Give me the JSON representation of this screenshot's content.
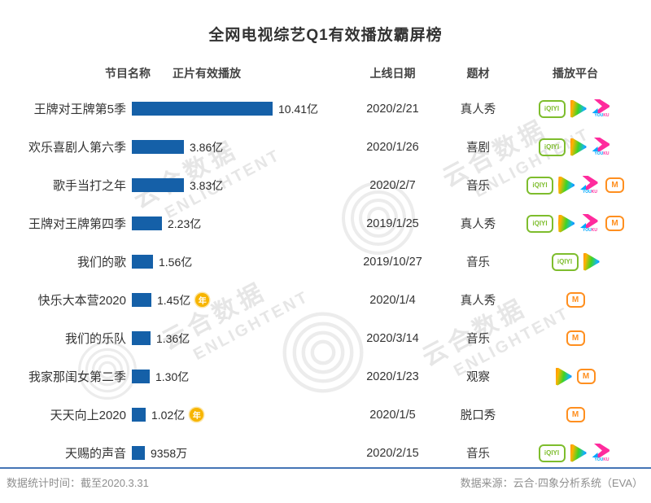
{
  "title": "全网电视综艺Q1有效播放霸屏榜",
  "columns": {
    "name": "节目名称",
    "playback": "正片有效播放",
    "date": "上线日期",
    "genre": "题材",
    "platform": "播放平台"
  },
  "chart_data": {
    "type": "bar",
    "orientation": "horizontal",
    "title": "全网电视综艺Q1有效播放霸屏榜",
    "unit": "亿",
    "max_value": 10.41,
    "xlim": [
      0,
      10.41
    ],
    "categories": [
      "王牌对王牌第5季",
      "欢乐喜剧人第六季",
      "歌手当打之年",
      "王牌对王牌第四季",
      "我们的歌",
      "快乐大本营2020",
      "我们的乐队",
      "我家那闺女第二季",
      "天天向上2020",
      "天赐的声音"
    ],
    "values": [
      10.41,
      3.86,
      3.83,
      2.23,
      1.56,
      1.45,
      1.36,
      1.3,
      1.02,
      0.9358
    ],
    "value_labels": [
      "10.41亿",
      "3.86亿",
      "3.83亿",
      "2.23亿",
      "1.56亿",
      "1.45亿",
      "1.36亿",
      "1.30亿",
      "1.02亿",
      "9358万"
    ]
  },
  "rows": [
    {
      "name": "王牌对王牌第5季",
      "value": 10.41,
      "value_label": "10.41亿",
      "badge": false,
      "date": "2020/2/21",
      "genre": "真人秀",
      "platforms": [
        "iqiyi",
        "tencent",
        "youku"
      ]
    },
    {
      "name": "欢乐喜剧人第六季",
      "value": 3.86,
      "value_label": "3.86亿",
      "badge": false,
      "date": "2020/1/26",
      "genre": "喜剧",
      "platforms": [
        "iqiyi",
        "tencent",
        "youku"
      ]
    },
    {
      "name": "歌手当打之年",
      "value": 3.83,
      "value_label": "3.83亿",
      "badge": false,
      "date": "2020/2/7",
      "genre": "音乐",
      "platforms": [
        "iqiyi",
        "tencent",
        "youku",
        "mgtv"
      ]
    },
    {
      "name": "王牌对王牌第四季",
      "value": 2.23,
      "value_label": "2.23亿",
      "badge": false,
      "date": "2019/1/25",
      "genre": "真人秀",
      "platforms": [
        "iqiyi",
        "tencent",
        "youku",
        "mgtv"
      ]
    },
    {
      "name": "我们的歌",
      "value": 1.56,
      "value_label": "1.56亿",
      "badge": false,
      "date": "2019/10/27",
      "genre": "音乐",
      "platforms": [
        "iqiyi",
        "tencent"
      ]
    },
    {
      "name": "快乐大本营2020",
      "value": 1.45,
      "value_label": "1.45亿",
      "badge": true,
      "date": "2020/1/4",
      "genre": "真人秀",
      "platforms": [
        "mgtv"
      ]
    },
    {
      "name": "我们的乐队",
      "value": 1.36,
      "value_label": "1.36亿",
      "badge": false,
      "date": "2020/3/14",
      "genre": "音乐",
      "platforms": [
        "mgtv"
      ]
    },
    {
      "name": "我家那闺女第二季",
      "value": 1.3,
      "value_label": "1.30亿",
      "badge": false,
      "date": "2020/1/23",
      "genre": "观察",
      "platforms": [
        "tencent",
        "mgtv"
      ]
    },
    {
      "name": "天天向上2020",
      "value": 1.02,
      "value_label": "1.02亿",
      "badge": true,
      "date": "2020/1/5",
      "genre": "脱口秀",
      "platforms": [
        "mgtv"
      ]
    },
    {
      "name": "天赐的声音",
      "value": 0.9358,
      "value_label": "9358万",
      "badge": false,
      "date": "2020/2/15",
      "genre": "音乐",
      "platforms": [
        "iqiyi",
        "tencent",
        "youku"
      ]
    }
  ],
  "badge_label": "年",
  "platform_labels": {
    "iqiyi": "iQIYI",
    "youku_you": "YOU",
    "youku_ku": "KU",
    "mgtv": "M"
  },
  "colors": {
    "bar": "#1560A8",
    "badge": "#F7B500",
    "divider": "#4575B5",
    "iqiyi_green": "#7EBD2D",
    "mgtv_orange": "#FF8F1F",
    "youku_pink": "#FF2B9D",
    "youku_blue": "#00A8FF"
  },
  "footer": {
    "left": "数据统计时间：截至2020.3.31",
    "right": "数据来源：云合·四象分析系统（EVA）"
  },
  "watermark": {
    "cn": "云合数据",
    "en": "ENLIGHTENT"
  }
}
